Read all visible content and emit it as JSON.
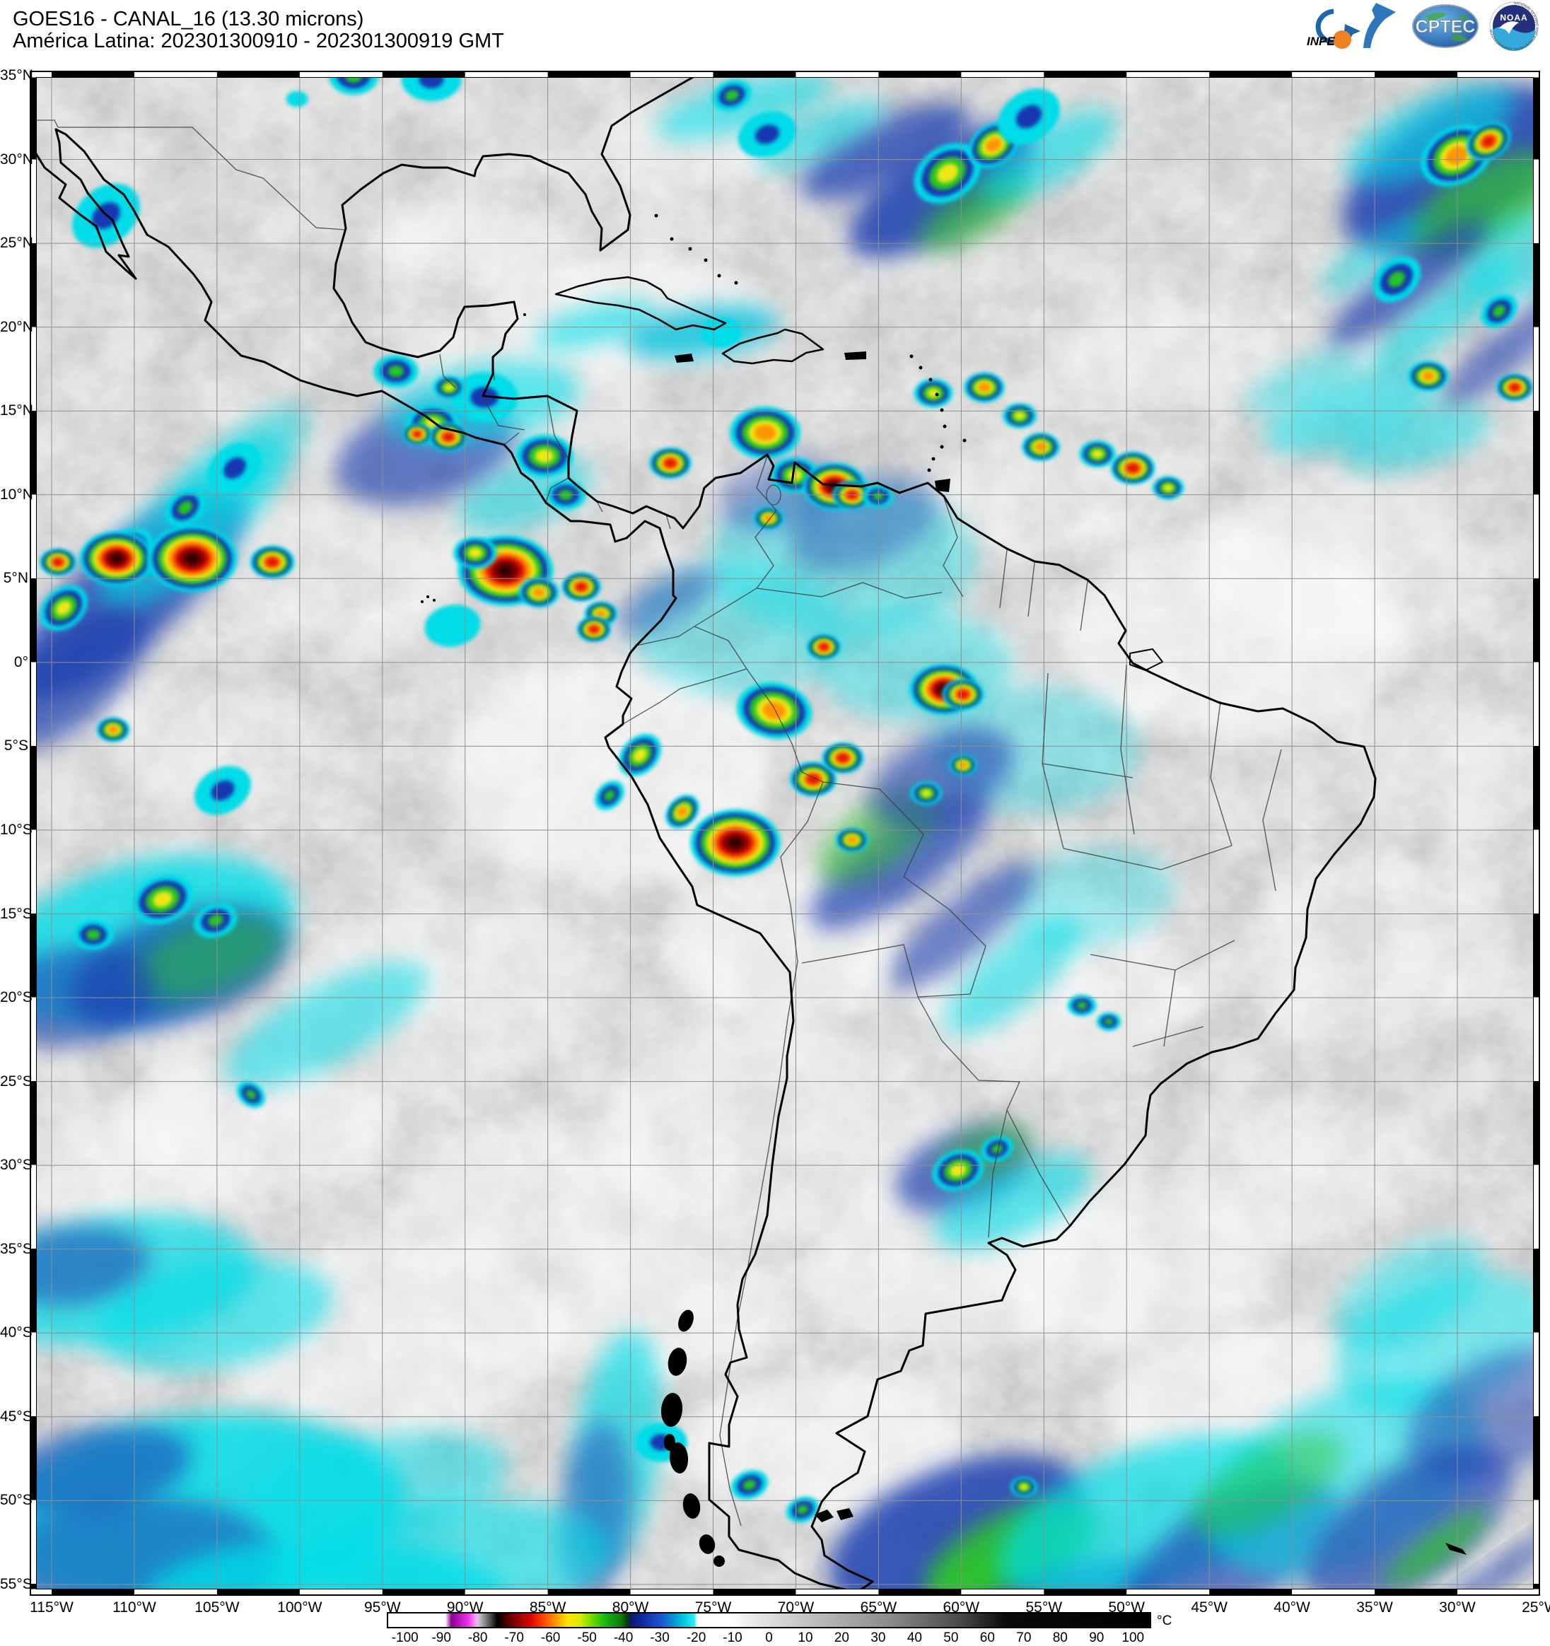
{
  "header": {
    "title_line1": "GOES16 - CANAL_16 (13.30 microns)",
    "title_line2": "América Latina: 202301300910 - 202301300919 GMT"
  },
  "logos": {
    "inpe_label": "INPE",
    "cptec_label": "CPTEC",
    "noaa_label": "NOAA",
    "noaa_ring_text": "NATIONAL OCEANIC AND ATMOSPHERIC ADMINISTRATION"
  },
  "map": {
    "lat_labels": [
      "35°N",
      "30°N",
      "25°N",
      "20°N",
      "15°N",
      "10°N",
      "5°N",
      "0°",
      "5°S",
      "10°S",
      "15°S",
      "20°S",
      "25°S",
      "30°S",
      "35°S",
      "40°S",
      "45°S",
      "50°S",
      "55°S"
    ],
    "lon_labels": [
      "115°W",
      "110°W",
      "105°W",
      "100°W",
      "95°W",
      "90°W",
      "85°W",
      "80°W",
      "75°W",
      "70°W",
      "65°W",
      "60°W",
      "55°W",
      "50°W",
      "45°W",
      "40°W",
      "35°W",
      "30°W",
      "25°W"
    ],
    "background_gray": "#cacaca",
    "grid_color": "#8f8f8f",
    "coast_color": "#000000",
    "border_color": "#3c3c3c"
  },
  "colorbar": {
    "unit": "°C",
    "ticks": [
      -100,
      -90,
      -80,
      -70,
      -60,
      -50,
      -40,
      -30,
      -20,
      -10,
      0,
      10,
      20,
      30,
      40,
      50,
      60,
      70,
      80,
      90,
      100
    ],
    "value_min": -105,
    "value_max": 105,
    "stops": [
      [
        0,
        "#ffffff"
      ],
      [
        7.5,
        "#ffffff"
      ],
      [
        8.3,
        "#8a0090"
      ],
      [
        10.5,
        "#ee30ee"
      ],
      [
        11.6,
        "#f8b0f8"
      ],
      [
        11.9,
        "#c8c8c8"
      ],
      [
        13.6,
        "#404040"
      ],
      [
        14.3,
        "#000000"
      ],
      [
        16.2,
        "#700000"
      ],
      [
        18.8,
        "#e00800"
      ],
      [
        20.5,
        "#ff4c00"
      ],
      [
        22.2,
        "#ffa000"
      ],
      [
        23.6,
        "#ffe400"
      ],
      [
        25.2,
        "#d8ec00"
      ],
      [
        27,
        "#60d800"
      ],
      [
        28.6,
        "#14b414"
      ],
      [
        30.6,
        "#0c7a0c"
      ],
      [
        31.4,
        "#063c06"
      ],
      [
        31.9,
        "#0c1670"
      ],
      [
        33.8,
        "#1233aa"
      ],
      [
        35.8,
        "#1c54d4"
      ],
      [
        37.2,
        "#0b87d0"
      ],
      [
        38.8,
        "#00c8e0"
      ],
      [
        40.2,
        "#30ecf0"
      ],
      [
        40.6,
        "#ffffff"
      ],
      [
        45.2,
        "#ffffff"
      ],
      [
        47,
        "#efefef"
      ],
      [
        56,
        "#bdbdbd"
      ],
      [
        66,
        "#8a8a8a"
      ],
      [
        75,
        "#4a4a4a"
      ],
      [
        81,
        "#0a0a0a"
      ],
      [
        100,
        "#000000"
      ]
    ]
  },
  "clouds": {
    "palette": [
      "#00dce8",
      "#1638b0",
      "#28c528",
      "#ece819",
      "#ff9500",
      "#e51400",
      "#800000"
    ],
    "core_color": "#2d0000",
    "band_colors": {
      "c": "#00dde8",
      "n": "#1c3fb0",
      "g": "#2fc32f",
      "t": "#00c0dc",
      "w": "#ffffff"
    },
    "cells_format": "x,y,size,intensity(1=cyan..7=darkred),rotation",
    "cells": [
      [
        458,
        8,
        22,
        3,
        0
      ],
      [
        568,
        12,
        32,
        2,
        0
      ],
      [
        378,
        40,
        28,
        1,
        0
      ],
      [
        993,
        35,
        18,
        3,
        -20
      ],
      [
        1043,
        90,
        32,
        2,
        -20
      ],
      [
        1298,
        145,
        30,
        4,
        -35
      ],
      [
        1363,
        105,
        22,
        5,
        -35
      ],
      [
        1413,
        65,
        36,
        2,
        -35
      ],
      [
        2018,
        120,
        30,
        5,
        -30
      ],
      [
        2063,
        100,
        18,
        6,
        -30
      ],
      [
        1933,
        295,
        24,
        3,
        -40
      ],
      [
        2078,
        340,
        18,
        3,
        -40
      ],
      [
        108,
        205,
        40,
        2,
        -40
      ],
      [
        48,
        760,
        22,
        4,
        -40
      ],
      [
        138,
        682,
        24,
        4,
        -40
      ],
      [
        220,
        618,
        20,
        3,
        -40
      ],
      [
        290,
        562,
        32,
        2,
        -40
      ],
      [
        518,
        425,
        20,
        3,
        0
      ],
      [
        570,
        500,
        22,
        4,
        0
      ],
      [
        643,
        462,
        36,
        2,
        0
      ],
      [
        978,
        370,
        52,
        1,
        0
      ],
      [
        40,
        695,
        14,
        6,
        0
      ],
      [
        123,
        690,
        28,
        7,
        0
      ],
      [
        230,
        690,
        34,
        7,
        0
      ],
      [
        343,
        695,
        17,
        6,
        0
      ],
      [
        593,
        448,
        13,
        4,
        0
      ],
      [
        592,
        518,
        15,
        6,
        0
      ],
      [
        548,
        514,
        11,
        6,
        0
      ],
      [
        728,
        545,
        24,
        4,
        0
      ],
      [
        758,
        600,
        18,
        3,
        0
      ],
      [
        906,
        555,
        16,
        6,
        0
      ],
      [
        1040,
        512,
        28,
        5,
        0
      ],
      [
        1082,
        572,
        20,
        4,
        0
      ],
      [
        1138,
        588,
        24,
        7,
        0
      ],
      [
        1163,
        600,
        15,
        6,
        0
      ],
      [
        1200,
        602,
        14,
        3,
        0
      ],
      [
        1045,
        633,
        12,
        5,
        0
      ],
      [
        1278,
        456,
        16,
        4,
        0
      ],
      [
        1350,
        448,
        16,
        5,
        0
      ],
      [
        1400,
        488,
        14,
        4,
        0
      ],
      [
        1430,
        532,
        15,
        5,
        0
      ],
      [
        1510,
        542,
        15,
        4,
        0
      ],
      [
        1560,
        562,
        17,
        6,
        0
      ],
      [
        1610,
        590,
        13,
        4,
        0
      ],
      [
        1978,
        432,
        16,
        5,
        0
      ],
      [
        2100,
        448,
        14,
        6,
        0
      ],
      [
        673,
        707,
        36,
        7,
        0
      ],
      [
        630,
        682,
        18,
        4,
        0
      ],
      [
        720,
        738,
        16,
        5,
        0
      ],
      [
        780,
        730,
        15,
        6,
        0
      ],
      [
        808,
        768,
        13,
        5,
        0
      ],
      [
        598,
        785,
        72,
        1,
        -10
      ],
      [
        798,
        790,
        13,
        6,
        0
      ],
      [
        1123,
        815,
        13,
        6,
        0
      ],
      [
        1053,
        905,
        30,
        5,
        10
      ],
      [
        1293,
        875,
        26,
        7,
        0
      ],
      [
        1320,
        882,
        16,
        6,
        0
      ],
      [
        923,
        1048,
        15,
        5,
        -45
      ],
      [
        998,
        1092,
        34,
        7,
        0
      ],
      [
        863,
        968,
        20,
        4,
        -45
      ],
      [
        1268,
        1022,
        13,
        4,
        0
      ],
      [
        1320,
        982,
        11,
        5,
        0
      ],
      [
        1108,
        1002,
        18,
        6,
        0
      ],
      [
        1150,
        972,
        16,
        6,
        0
      ],
      [
        1163,
        1088,
        13,
        5,
        0
      ],
      [
        820,
        1025,
        15,
        3,
        -45
      ],
      [
        118,
        932,
        13,
        5,
        0
      ],
      [
        273,
        1018,
        32,
        2,
        -30
      ],
      [
        1488,
        1322,
        13,
        3,
        0
      ],
      [
        1526,
        1345,
        11,
        3,
        0
      ],
      [
        1313,
        1555,
        22,
        4,
        -20
      ],
      [
        1368,
        1525,
        15,
        3,
        -20
      ],
      [
        188,
        1172,
        26,
        4,
        -20
      ],
      [
        263,
        1202,
        20,
        3,
        -20
      ],
      [
        90,
        1222,
        18,
        3,
        0
      ],
      [
        313,
        1448,
        14,
        3,
        40
      ],
      [
        1406,
        2003,
        11,
        4,
        0
      ],
      [
        893,
        1940,
        28,
        2,
        0
      ],
      [
        1018,
        2000,
        17,
        3,
        -20
      ],
      [
        1093,
        2035,
        15,
        3,
        -20
      ]
    ],
    "bands_format": "x,y,rx,ry,rotation,colorKey,opacity",
    "bands": [
      [
        1210,
        115,
        130,
        45,
        -25,
        "n",
        0.75
      ],
      [
        1290,
        170,
        150,
        60,
        -32,
        "n",
        0.85
      ],
      [
        1335,
        200,
        90,
        35,
        -32,
        "g",
        0.6
      ],
      [
        1440,
        120,
        110,
        40,
        -30,
        "c",
        0.6
      ],
      [
        1010,
        50,
        130,
        35,
        -15,
        "c",
        0.6
      ],
      [
        1120,
        90,
        100,
        30,
        -25,
        "c",
        0.55
      ],
      [
        2020,
        140,
        180,
        90,
        -30,
        "n",
        0.85
      ],
      [
        2060,
        190,
        120,
        55,
        -30,
        "g",
        0.7
      ],
      [
        1980,
        90,
        130,
        50,
        -25,
        "c",
        0.6
      ],
      [
        2120,
        260,
        100,
        60,
        -20,
        "c",
        0.5
      ],
      [
        1950,
        300,
        140,
        35,
        -38,
        "n",
        0.7
      ],
      [
        2000,
        345,
        130,
        30,
        -38,
        "c",
        0.6
      ],
      [
        2090,
        395,
        120,
        28,
        -40,
        "n",
        0.6
      ],
      [
        1900,
        260,
        90,
        25,
        -35,
        "c",
        0.5
      ],
      [
        1870,
        480,
        130,
        45,
        -20,
        "c",
        0.55
      ],
      [
        1960,
        520,
        110,
        40,
        -15,
        "c",
        0.5
      ],
      [
        1800,
        440,
        90,
        30,
        -25,
        "c",
        0.4
      ],
      [
        140,
        740,
        210,
        70,
        -42,
        "n",
        0.8
      ],
      [
        230,
        640,
        170,
        60,
        -42,
        "c",
        0.6
      ],
      [
        60,
        860,
        130,
        60,
        -42,
        "n",
        0.7
      ],
      [
        300,
        560,
        120,
        45,
        -42,
        "c",
        0.5
      ],
      [
        560,
        540,
        130,
        70,
        -15,
        "n",
        0.65
      ],
      [
        640,
        470,
        140,
        55,
        -10,
        "c",
        0.6
      ],
      [
        800,
        360,
        90,
        28,
        -15,
        "c",
        0.6
      ],
      [
        950,
        370,
        110,
        35,
        -8,
        "t",
        0.8
      ],
      [
        700,
        600,
        100,
        45,
        -20,
        "c",
        0.5
      ],
      [
        1150,
        690,
        190,
        110,
        0,
        "c",
        0.4
      ],
      [
        1000,
        790,
        150,
        95,
        0,
        "c",
        0.38
      ],
      [
        900,
        750,
        80,
        30,
        -30,
        "n",
        0.45
      ],
      [
        1250,
        840,
        140,
        80,
        0,
        "c",
        0.4
      ],
      [
        1420,
        960,
        150,
        90,
        0,
        "c",
        0.35
      ],
      [
        1500,
        1170,
        120,
        70,
        -10,
        "c",
        0.32
      ],
      [
        1180,
        640,
        110,
        60,
        -20,
        "n",
        0.4
      ],
      [
        1060,
        600,
        90,
        50,
        -15,
        "n",
        0.4
      ],
      [
        1230,
        1120,
        150,
        50,
        -35,
        "n",
        0.7
      ],
      [
        1200,
        1080,
        100,
        45,
        -35,
        "g",
        0.55
      ],
      [
        1320,
        1210,
        130,
        40,
        -40,
        "n",
        0.6
      ],
      [
        1390,
        1280,
        120,
        45,
        -40,
        "c",
        0.55
      ],
      [
        1290,
        1000,
        110,
        60,
        -25,
        "n",
        0.6
      ],
      [
        1320,
        1555,
        100,
        55,
        -20,
        "n",
        0.7
      ],
      [
        1390,
        1600,
        120,
        50,
        -25,
        "c",
        0.6
      ],
      [
        1350,
        1530,
        70,
        35,
        -20,
        "g",
        0.5
      ],
      [
        160,
        1230,
        220,
        110,
        -15,
        "c",
        0.8
      ],
      [
        210,
        1270,
        160,
        75,
        -18,
        "n",
        0.7
      ],
      [
        250,
        1255,
        110,
        50,
        -18,
        "g",
        0.5
      ],
      [
        420,
        1350,
        160,
        55,
        -28,
        "c",
        0.55
      ],
      [
        60,
        1310,
        120,
        70,
        -10,
        "n",
        0.6
      ],
      [
        120,
        1710,
        200,
        90,
        -8,
        "c",
        0.7
      ],
      [
        60,
        1690,
        110,
        55,
        -5,
        "n",
        0.55
      ],
      [
        260,
        1760,
        170,
        75,
        -10,
        "c",
        0.6
      ],
      [
        830,
        1950,
        60,
        170,
        8,
        "c",
        0.65
      ],
      [
        800,
        2040,
        50,
        130,
        5,
        "n",
        0.5
      ],
      [
        240,
        2040,
        290,
        140,
        -5,
        "c",
        0.85
      ],
      [
        140,
        2120,
        210,
        100,
        -5,
        "n",
        0.55
      ],
      [
        420,
        2170,
        260,
        95,
        0,
        "c",
        0.8
      ],
      [
        620,
        2110,
        200,
        90,
        -5,
        "c",
        0.6
      ],
      [
        90,
        1980,
        140,
        60,
        -10,
        "n",
        0.6
      ],
      [
        500,
        2000,
        180,
        70,
        -10,
        "c",
        0.5
      ],
      [
        1310,
        2070,
        190,
        95,
        -22,
        "n",
        0.85
      ],
      [
        1390,
        2100,
        130,
        60,
        -24,
        "g",
        0.85
      ],
      [
        1365,
        2140,
        95,
        48,
        -24,
        "g",
        0.95
      ],
      [
        1450,
        2180,
        150,
        60,
        -20,
        "n",
        0.7
      ],
      [
        1580,
        2050,
        220,
        100,
        -20,
        "c",
        0.7
      ],
      [
        1700,
        2100,
        170,
        75,
        -30,
        "n",
        0.65
      ],
      [
        1860,
        1990,
        210,
        120,
        -25,
        "c",
        0.55
      ],
      [
        1950,
        2060,
        170,
        80,
        -35,
        "n",
        0.65
      ],
      [
        1990,
        2090,
        90,
        20,
        -35,
        "g",
        0.8
      ],
      [
        2070,
        2130,
        130,
        12,
        -35,
        "n",
        0.8
      ],
      [
        1750,
        2000,
        120,
        50,
        -30,
        "g",
        0.45
      ],
      [
        2000,
        1800,
        160,
        90,
        -20,
        "c",
        0.5
      ],
      [
        2080,
        1900,
        140,
        80,
        -25,
        "n",
        0.5
      ],
      [
        1950,
        1730,
        120,
        60,
        -30,
        "c",
        0.45
      ]
    ],
    "whites_format": "x,y,rx,ry,opacity",
    "whites": [
      [
        850,
        340,
        200,
        80,
        0.55
      ],
      [
        620,
        240,
        150,
        60,
        0.5
      ],
      [
        1700,
        800,
        240,
        150,
        0.55
      ],
      [
        1450,
        1290,
        200,
        130,
        0.5
      ],
      [
        820,
        990,
        230,
        160,
        0.6
      ],
      [
        1060,
        1240,
        170,
        110,
        0.55
      ],
      [
        520,
        1790,
        240,
        140,
        0.5
      ],
      [
        720,
        1590,
        200,
        110,
        0.45
      ],
      [
        1120,
        1940,
        200,
        100,
        0.6
      ],
      [
        1760,
        1890,
        230,
        110,
        0.6
      ],
      [
        2030,
        1790,
        150,
        90,
        0.5
      ],
      [
        320,
        1490,
        200,
        100,
        0.45
      ],
      [
        1560,
        1690,
        210,
        110,
        0.5
      ],
      [
        920,
        110,
        150,
        60,
        0.45
      ],
      [
        1620,
        400,
        170,
        80,
        0.4
      ],
      [
        1050,
        1500,
        250,
        150,
        0.4
      ],
      [
        600,
        1300,
        220,
        130,
        0.4
      ],
      [
        1900,
        1250,
        200,
        130,
        0.35
      ],
      [
        1450,
        600,
        160,
        90,
        0.35
      ],
      [
        250,
        950,
        160,
        90,
        0.35
      ],
      [
        700,
        450,
        180,
        100,
        0.4
      ],
      [
        1850,
        700,
        200,
        120,
        0.4
      ],
      [
        450,
        700,
        180,
        100,
        0.35
      ],
      [
        1300,
        1700,
        200,
        120,
        0.45
      ],
      [
        900,
        1750,
        180,
        100,
        0.5
      ],
      [
        150,
        1550,
        160,
        90,
        0.45
      ],
      [
        1997,
        980,
        150,
        100,
        0.3
      ],
      [
        1800,
        1550,
        180,
        100,
        0.4
      ]
    ]
  }
}
